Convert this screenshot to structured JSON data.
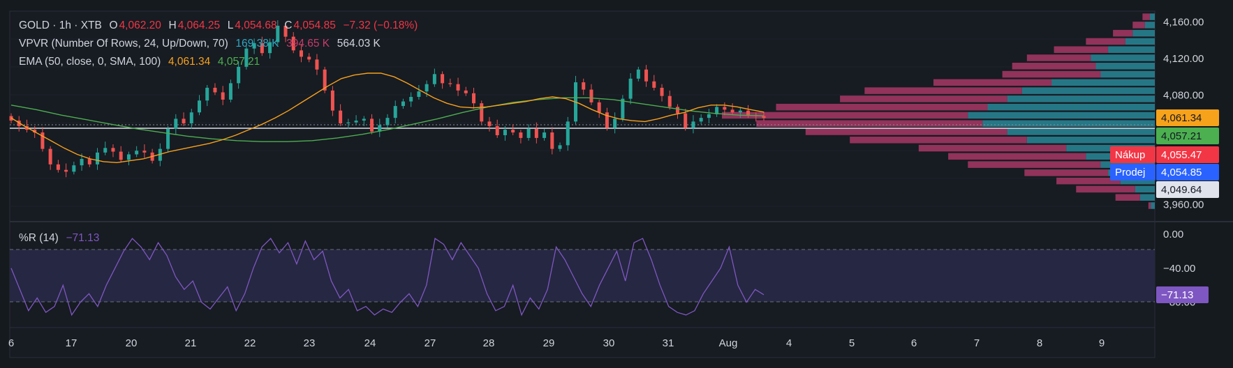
{
  "header": {
    "symbol": "GOLD · 1h · XTB",
    "o_label": "O",
    "o_value": "4,062.20",
    "h_label": "H",
    "h_value": "4,064.25",
    "l_label": "L",
    "l_value": "4,054.68",
    "c_label": "C",
    "c_value": "4,054.85",
    "change": "−7.32 (−0.18%)"
  },
  "indicators": {
    "vpvr_label": "VPVR (Number Of Rows, 24, Up/Down, 70)",
    "vpvr_up": "169.38 K",
    "vpvr_down": "394.65 K",
    "vpvr_total": "564.03 K",
    "ema_label": "EMA (50, close, 0, SMA, 100)",
    "ema_value": "4,061.34",
    "sma_value": "4,057.21",
    "wr_label": "%R (14)",
    "wr_value": "−71.13"
  },
  "price_axis": {
    "ticks": [
      "4,160.00",
      "4,120.00",
      "4,080.00",
      "3,960.00"
    ],
    "tags": {
      "ema": "4,061.34",
      "sma": "4,057.21",
      "buy_label": "Nákup",
      "buy": "4,055.47",
      "sell_label": "Prodej",
      "sell": "4,054.85",
      "crosshair": "4,049.64"
    }
  },
  "wr_axis": {
    "ticks": [
      "0.00",
      "−40.00",
      "−80.00"
    ],
    "tag": "−71.13"
  },
  "time_axis": [
    "6",
    "17",
    "20",
    "21",
    "22",
    "23",
    "24",
    "27",
    "28",
    "29",
    "30",
    "31",
    "Aug",
    "4",
    "5",
    "6",
    "7",
    "8",
    "9"
  ],
  "colors": {
    "up": "#26a69a",
    "down": "#ef5350",
    "ema": "#f7a21b",
    "sma": "#4caf50",
    "vp_up": "#2b8fa0",
    "vp_down": "#b03a6a",
    "wr": "#7e57c2"
  },
  "chart_data": {
    "type": "candlestick",
    "symbol": "GOLD",
    "timeframe": "1h",
    "ylim": [
      3955,
      4172
    ],
    "ohlc_last": {
      "open": 4062.2,
      "high": 4064.25,
      "low": 4054.68,
      "close": 4054.85
    },
    "close_series": [
      4052,
      4046,
      4042,
      4039,
      4021,
      4004,
      3998,
      3996,
      4003,
      4010,
      4004,
      4017,
      4022,
      4018,
      4009,
      4015,
      4019,
      4017,
      4008,
      4021,
      4043,
      4054,
      4049,
      4061,
      4074,
      4088,
      4083,
      4075,
      4093,
      4111,
      4131,
      4137,
      4126,
      4138,
      4156,
      4144,
      4129,
      4122,
      4119,
      4108,
      4085,
      4063,
      4049,
      4050,
      4052,
      4054,
      4040,
      4047,
      4055,
      4068,
      4073,
      4078,
      4084,
      4092,
      4103,
      4093,
      4092,
      4085,
      4082,
      4071,
      4051,
      4046,
      4036,
      4042,
      4039,
      4033,
      4043,
      4033,
      4039,
      4021,
      4025,
      4051,
      4094,
      4086,
      4072,
      4061,
      4044,
      4054,
      4076,
      4098,
      4108,
      4095,
      4088,
      4079,
      4067,
      4060,
      4044,
      4051,
      4055,
      4059,
      4067,
      4064,
      4061,
      4063,
      4058,
      4057,
      4054.85
    ],
    "ema_50": [
      4055,
      4046,
      4038,
      4030,
      4022,
      4015,
      4010,
      4007,
      4006,
      4008,
      4010,
      4014,
      4018,
      4021,
      4024,
      4027,
      4031,
      4036,
      4042,
      4048,
      4055,
      4063,
      4072,
      4081,
      4090,
      4098,
      4102,
      4104,
      4104,
      4100,
      4093,
      4085,
      4077,
      4071,
      4067,
      4066,
      4067,
      4069,
      4071,
      4073,
      4076,
      4078,
      4076,
      4071,
      4064,
      4058,
      4054,
      4052,
      4051,
      4054,
      4058,
      4061,
      4066,
      4069,
      4069,
      4067,
      4064,
      4061.34
    ],
    "sma_100": [
      4069,
      4064,
      4058,
      4053,
      4048,
      4043,
      4039,
      4035,
      4032,
      4030,
      4029,
      4029,
      4030,
      4033,
      4037,
      4042,
      4048,
      4054,
      4061,
      4067,
      4072,
      4075,
      4077,
      4077,
      4075,
      4071,
      4067,
      4063,
      4060,
      4058,
      4057.21
    ],
    "volume_profile": {
      "row_prices": [
        4166,
        4157,
        4148,
        4139,
        4130,
        4121,
        4112,
        4103,
        4094,
        4085,
        4076,
        4067,
        4058,
        4049,
        4040,
        4031,
        4022,
        4013,
        4004,
        3995,
        3986,
        3977,
        3968,
        3959
      ],
      "up_volumes": [
        10,
        20,
        45,
        60,
        95,
        130,
        120,
        110,
        210,
        270,
        300,
        340,
        380,
        350,
        300,
        260,
        180,
        140,
        110,
        95,
        70,
        40,
        30,
        8
      ],
      "down_volumes": [
        15,
        25,
        40,
        80,
        110,
        130,
        170,
        200,
        240,
        320,
        340,
        430,
        500,
        460,
        410,
        360,
        300,
        280,
        270,
        170,
        130,
        120,
        50,
        5
      ],
      "totals": {
        "up": "169.38 K",
        "down": "394.65 K",
        "total": "564.03 K"
      }
    },
    "williams_r": {
      "period": 14,
      "last": -71.13,
      "levels": [
        -20,
        -80
      ],
      "ylim": [
        -100,
        0
      ],
      "values": [
        -40,
        -65,
        -90,
        -75,
        -92,
        -85,
        -60,
        -95,
        -80,
        -70,
        -85,
        -60,
        -40,
        -20,
        -5,
        -15,
        -30,
        -10,
        -25,
        -50,
        -65,
        -55,
        -80,
        -88,
        -75,
        -62,
        -90,
        -70,
        -40,
        -15,
        -5,
        -22,
        -10,
        -35,
        -8,
        -30,
        -20,
        -55,
        -75,
        -65,
        -90,
        -85,
        -95,
        -88,
        -92,
        -80,
        -70,
        -85,
        -60,
        -5,
        -12,
        -30,
        -10,
        -25,
        -40,
        -70,
        -90,
        -85,
        -60,
        -95,
        -75,
        -88,
        -65,
        -15,
        -30,
        -50,
        -70,
        -85,
        -60,
        -40,
        -20,
        -55,
        -10,
        -5,
        -30,
        -60,
        -85,
        -92,
        -95,
        -90,
        -70,
        -55,
        -40,
        -15,
        -60,
        -80,
        -65,
        -71.13
      ]
    }
  }
}
